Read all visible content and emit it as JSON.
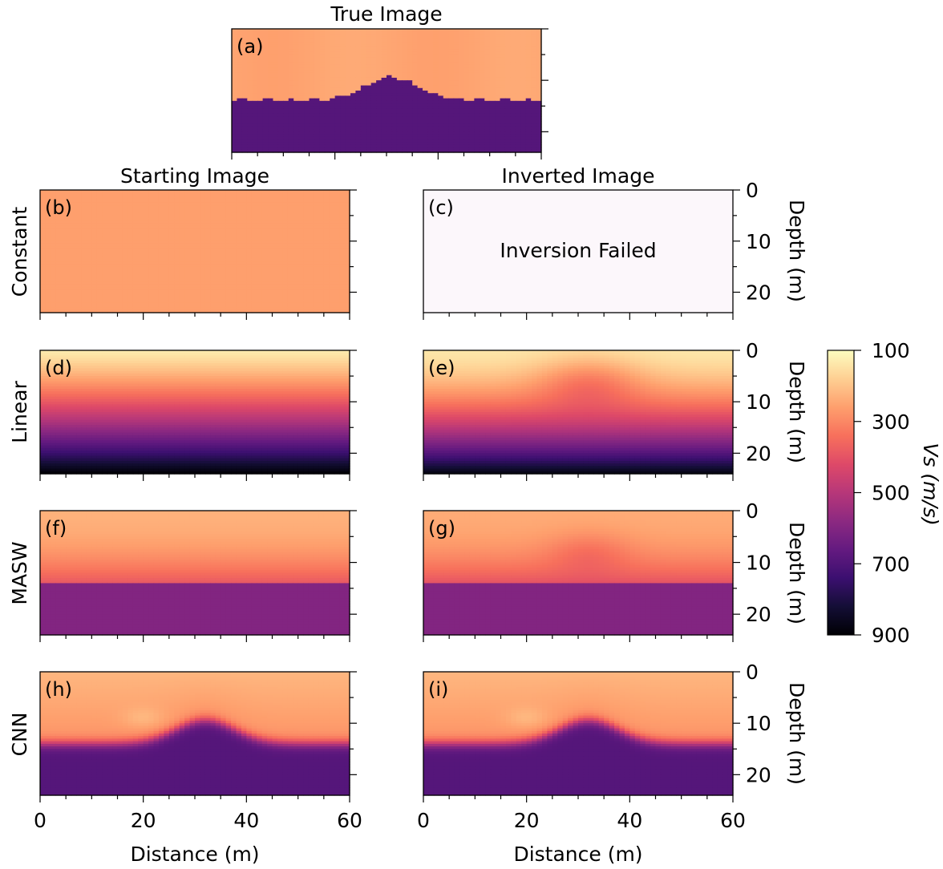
{
  "colors": {
    "colormap": "magma",
    "failed_panel": "#fcf7fb",
    "cmap_stops": [
      "#000004",
      "#140e36",
      "#3b0f70",
      "#641a80",
      "#8c2981",
      "#b73779",
      "#de4968",
      "#f7705c",
      "#fe9f6d",
      "#fecf92",
      "#fcfdbf"
    ]
  },
  "chart_data": {
    "type": "heatmap",
    "column_titles": {
      "true": "True Image",
      "start": "Starting Image",
      "inverted": "Inverted Image"
    },
    "row_labels": [
      "Constant",
      "Linear",
      "MASW",
      "CNN"
    ],
    "xlabel": "Distance (m)",
    "ylabel": "Depth (m)",
    "xlim": [
      0,
      60
    ],
    "ylim": [
      0,
      24
    ],
    "x_ticks": [
      "0",
      "20",
      "40",
      "60"
    ],
    "y_ticks": [
      "0",
      "10",
      "20"
    ],
    "failed_text": "Inversion Failed",
    "colorbar": {
      "label": "Vs (m/s)",
      "range": [
        100,
        900
      ],
      "ticks": [
        "100",
        "300",
        "500",
        "700",
        "900"
      ],
      "reversed": true
    },
    "panels": [
      {
        "id": "a",
        "label": "(a)",
        "column": "true",
        "row": "",
        "model": "interface_true",
        "surface_vs": 250,
        "deep_vs": 690
      },
      {
        "id": "b",
        "label": "(b)",
        "column": "start",
        "row": "Constant",
        "model": "constant",
        "vs": 260
      },
      {
        "id": "c",
        "label": "(c)",
        "column": "inverted",
        "row": "Constant",
        "model": "failed"
      },
      {
        "id": "d",
        "label": "(d)",
        "column": "start",
        "row": "Linear",
        "model": "linear",
        "vs_top": 130,
        "vs_bottom": 900
      },
      {
        "id": "e",
        "label": "(e)",
        "column": "inverted",
        "row": "Linear",
        "model": "linear_inverted",
        "vs_top": 140,
        "vs_bottom": 880
      },
      {
        "id": "f",
        "label": "(f)",
        "column": "start",
        "row": "MASW",
        "model": "layered",
        "vs_top": 230,
        "vs_bottom": 600,
        "interface_depth": 14
      },
      {
        "id": "g",
        "label": "(g)",
        "column": "inverted",
        "row": "MASW",
        "model": "layered_inverted",
        "vs_top": 240,
        "vs_bottom": 600,
        "interface_depth": 14
      },
      {
        "id": "h",
        "label": "(h)",
        "column": "start",
        "row": "CNN",
        "model": "interface_smooth",
        "surface_vs": 220,
        "deep_vs": 690
      },
      {
        "id": "i",
        "label": "(i)",
        "column": "inverted",
        "row": "CNN",
        "model": "interface_smooth",
        "surface_vs": 220,
        "deep_vs": 690
      }
    ]
  }
}
